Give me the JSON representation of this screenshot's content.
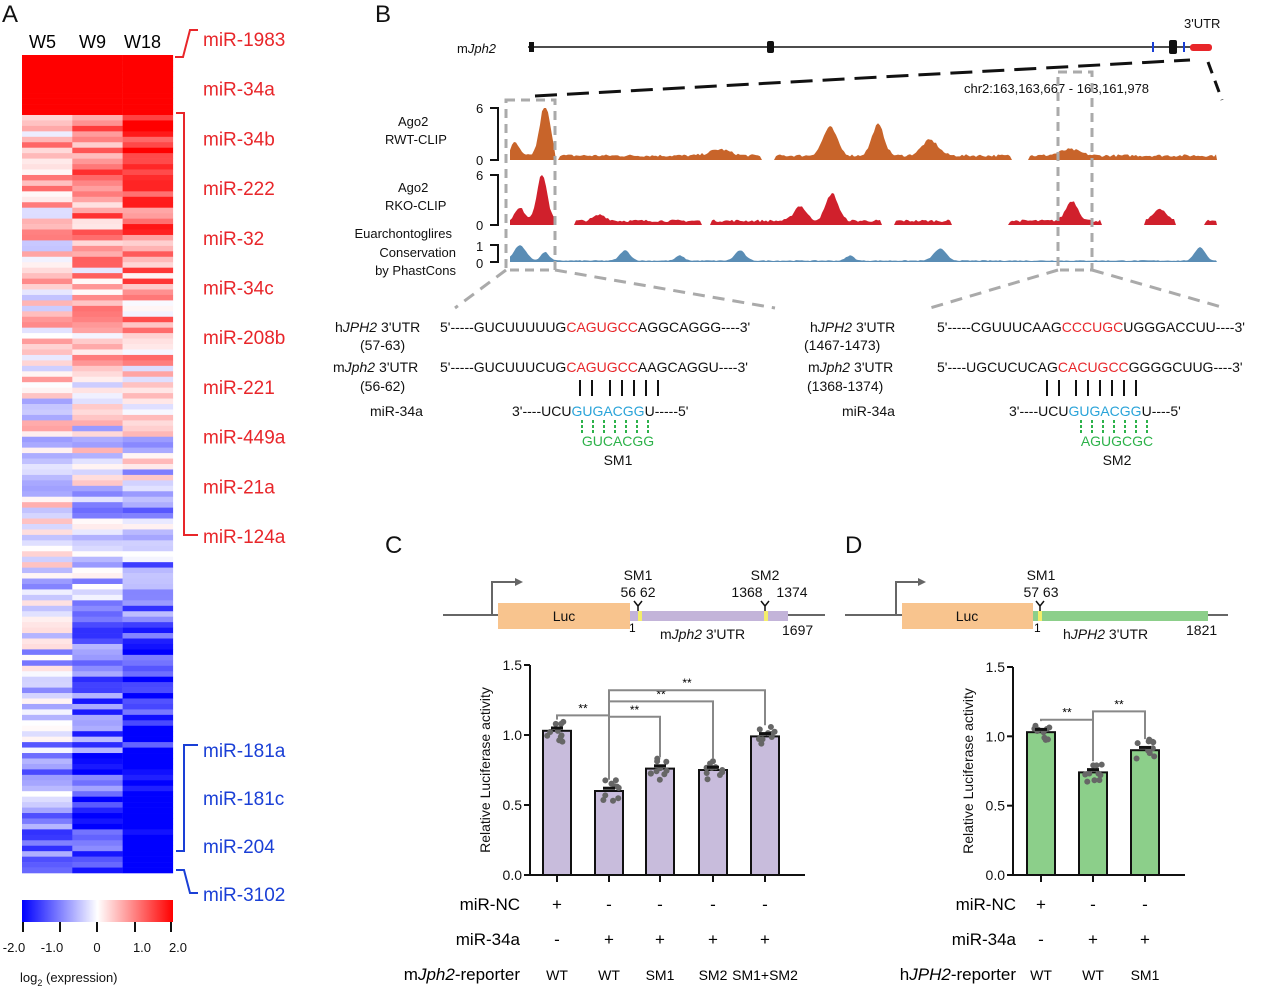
{
  "panels": {
    "a": "A",
    "b": "B",
    "c": "C",
    "d": "D"
  },
  "heatmap": {
    "columns": [
      "W5",
      "W9",
      "W18"
    ],
    "up_labels": [
      "miR-1983",
      "miR-34a",
      "miR-34b",
      "miR-222",
      "miR-32",
      "miR-34c",
      "miR-208b",
      "miR-221",
      "miR-449a",
      "miR-21a",
      "miR-124a"
    ],
    "down_labels": [
      "miR-181a",
      "miR-181c",
      "miR-204",
      "miR-3102"
    ],
    "scale_ticks": [
      "-2.0",
      "-1.0",
      "0",
      "1.0",
      "2.0"
    ],
    "scale_label": "log",
    "scale_label_sub": "2",
    "scale_label_rest": " (expression)",
    "colors": {
      "low": "#0000ff",
      "mid": "#ffffff",
      "high": "#ff0000"
    }
  },
  "tracks": {
    "gene": "mJph2",
    "gene_m": "m",
    "gene_i": "Jph2",
    "utr": "3'UTR",
    "coords": "chr2:163,163,667 - 163,161,978",
    "rwt": {
      "l1": "Ago2",
      "l2": "RWT-CLIP",
      "max": "6",
      "min": "0",
      "color": "#c8642a"
    },
    "rko": {
      "l1": "Ago2",
      "l2": "RKO-CLIP",
      "max": "6",
      "min": "0",
      "color": "#d0202c"
    },
    "cons": {
      "l1": "Euarchontoglires",
      "l2": "Conservation",
      "l3": "by PhastCons",
      "max": "1",
      "min": "0",
      "color": "#5a8db5"
    }
  },
  "seq": {
    "left": {
      "h_label": "3'UTR",
      "h_range": "(57-63)",
      "h_5": "5'-----GUCUUUUUG",
      "h_site": "CAGUGCC",
      "h_3": "AGGCAGGG----3'",
      "m_label": "3'UTR",
      "m_range": "(56-62)",
      "m_5": "5'-----GUCUUUCUG",
      "m_site": "CAGUGCC",
      "m_3": "AAGCAGGU----3'",
      "mir": "miR-34a",
      "mir_5": "3'----UCU",
      "mir_seed": "GUGACGG",
      "mir_3": "U-----5'",
      "mut": "GUCACGG",
      "mut_name": "SM1"
    },
    "right": {
      "h_label": "3'UTR",
      "h_range": "(1467-1473)",
      "h_5": "5'-----CGUUUCAAG",
      "h_site": "CCCUGC",
      "h_3": "UGGGACCUU----3'",
      "m_label": "3'UTR",
      "m_range": "(1368-1374)",
      "m_5": "5'----UGCUCUCAG",
      "m_site": "CACUGCC",
      "m_3": "GGGGCUUG----3'",
      "mir": "miR-34a",
      "mir_5": "3'----UCU",
      "mir_seed": "GUGACGG",
      "mir_3": "U----5'",
      "mut": "AGUGCGC",
      "mut_name": "SM2"
    },
    "h_prefix": "h",
    "h_gene": "JPH2",
    "m_prefix": "m",
    "m_gene": "Jph2"
  },
  "construct_c": {
    "luc": "Luc",
    "sm1": "SM1",
    "sm1_pos": "56 62",
    "sm2": "SM2",
    "sm2_pos1": "1368",
    "sm2_pos2": "1374",
    "start": "1",
    "utr_m": "m",
    "utr_i": "Jph2",
    "utr_rest": " 3'UTR",
    "end": "1697"
  },
  "construct_d": {
    "luc": "Luc",
    "sm1": "SM1",
    "sm1_pos": "57 63",
    "start": "1",
    "utr_m": "h",
    "utr_i": "JPH2",
    "utr_rest": " 3'UTR",
    "end": "1821"
  },
  "chart_data": [
    {
      "type": "bar",
      "panel": "C",
      "ylabel": "Relative Luciferase activity",
      "ylim": [
        0,
        1.5
      ],
      "yticks": [
        "0.0",
        "0.5",
        "1.0",
        "1.5"
      ],
      "categories": [
        "WT",
        "WT",
        "SM1",
        "SM2",
        "SM1+SM2"
      ],
      "values": [
        1.03,
        0.6,
        0.76,
        0.75,
        0.99
      ],
      "color": "#c8bcdc",
      "significance": [
        {
          "from": 0,
          "to": 1,
          "label": "**"
        },
        {
          "from": 1,
          "to": 2,
          "label": "**"
        },
        {
          "from": 1,
          "to": 3,
          "label": "**"
        },
        {
          "from": 1,
          "to": 4,
          "label": "**"
        }
      ],
      "rows": [
        {
          "label": "miR-NC",
          "values": [
            "+",
            "-",
            "-",
            "-",
            "-"
          ]
        },
        {
          "label": "miR-34a",
          "values": [
            "-",
            "+",
            "+",
            "+",
            "+"
          ]
        },
        {
          "label_m": "m",
          "label_i": "Jph2",
          "label_rest": "-reporter",
          "values": [
            "WT",
            "WT",
            "SM1",
            "SM2",
            "SM1+SM2"
          ]
        }
      ]
    },
    {
      "type": "bar",
      "panel": "D",
      "ylabel": "Relative Luciferase activity",
      "ylim": [
        0,
        1.5
      ],
      "yticks": [
        "0.0",
        "0.5",
        "1.0",
        "1.5"
      ],
      "categories": [
        "WT",
        "WT",
        "SM1"
      ],
      "values": [
        1.03,
        0.74,
        0.9
      ],
      "color": "#8ccf8a",
      "significance": [
        {
          "from": 0,
          "to": 1,
          "label": "**"
        },
        {
          "from": 1,
          "to": 2,
          "label": "**"
        }
      ],
      "rows": [
        {
          "label": "miR-NC",
          "values": [
            "+",
            "-",
            "-"
          ]
        },
        {
          "label": "miR-34a",
          "values": [
            "-",
            "+",
            "+"
          ]
        },
        {
          "label_m": "h",
          "label_i": "JPH2",
          "label_rest": "-reporter",
          "values": [
            "WT",
            "WT",
            "SM1"
          ]
        }
      ]
    }
  ]
}
